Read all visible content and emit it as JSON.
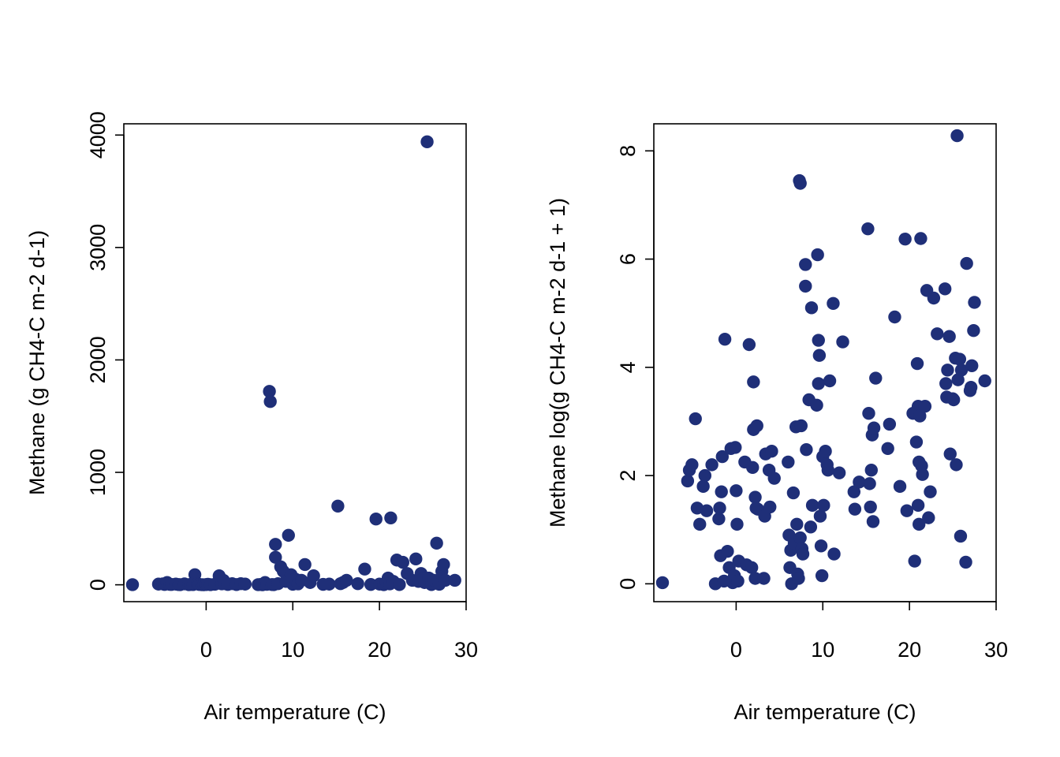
{
  "chart_data": [
    {
      "type": "scatter",
      "title": "",
      "xlabel": "Air temperature (C)",
      "ylabel": "Methane (g CH4-C m-2 d-1)",
      "xlim": [
        -9.5,
        30
      ],
      "ylim": [
        -150,
        4100
      ],
      "xticks": [
        0,
        10,
        20,
        30
      ],
      "xtick_labels": [
        "0",
        "10",
        "20",
        "30"
      ],
      "yticks": [
        0,
        1000,
        2000,
        3000,
        4000
      ],
      "ytick_labels": [
        "0",
        "1000",
        "2000",
        "3000",
        "4000"
      ],
      "color": "#1f2f78",
      "points": [
        {
          "x": -8.5,
          "y": 1
        },
        {
          "x": -5.5,
          "y": 6
        },
        {
          "x": -5.0,
          "y": 8
        },
        {
          "x": -4.8,
          "y": 3
        },
        {
          "x": -4.5,
          "y": 20
        },
        {
          "x": -4.2,
          "y": 4
        },
        {
          "x": -4.0,
          "y": 3
        },
        {
          "x": -3.5,
          "y": 6
        },
        {
          "x": -3.2,
          "y": 2
        },
        {
          "x": -3.0,
          "y": 1
        },
        {
          "x": -2.5,
          "y": 8
        },
        {
          "x": -2.0,
          "y": 1
        },
        {
          "x": -1.8,
          "y": 3
        },
        {
          "x": -1.5,
          "y": 2
        },
        {
          "x": -1.3,
          "y": 90
        },
        {
          "x": -1.0,
          "y": 10
        },
        {
          "x": -0.8,
          "y": 3
        },
        {
          "x": -0.5,
          "y": 1
        },
        {
          "x": -0.3,
          "y": 0
        },
        {
          "x": 0.0,
          "y": 2
        },
        {
          "x": 0.2,
          "y": 5
        },
        {
          "x": 0.5,
          "y": 1
        },
        {
          "x": 1.0,
          "y": 5
        },
        {
          "x": 1.5,
          "y": 80
        },
        {
          "x": 1.8,
          "y": 8
        },
        {
          "x": 2.0,
          "y": 40
        },
        {
          "x": 2.2,
          "y": 10
        },
        {
          "x": 2.5,
          "y": 3
        },
        {
          "x": 3.0,
          "y": 10
        },
        {
          "x": 3.5,
          "y": 2
        },
        {
          "x": 4.0,
          "y": 10
        },
        {
          "x": 4.5,
          "y": 6
        },
        {
          "x": 6.0,
          "y": 1
        },
        {
          "x": 6.3,
          "y": 3
        },
        {
          "x": 6.5,
          "y": 0
        },
        {
          "x": 6.8,
          "y": 20
        },
        {
          "x": 7.0,
          "y": 4
        },
        {
          "x": 7.3,
          "y": 1720
        },
        {
          "x": 7.4,
          "y": 1630
        },
        {
          "x": 7.6,
          "y": 2
        },
        {
          "x": 7.8,
          "y": 1
        },
        {
          "x": 8.0,
          "y": 360
        },
        {
          "x": 8.0,
          "y": 245
        },
        {
          "x": 8.3,
          "y": 10
        },
        {
          "x": 8.6,
          "y": 160
        },
        {
          "x": 8.9,
          "y": 120
        },
        {
          "x": 9.2,
          "y": 30
        },
        {
          "x": 9.5,
          "y": 440
        },
        {
          "x": 9.8,
          "y": 90
        },
        {
          "x": 10.0,
          "y": 5
        },
        {
          "x": 10.3,
          "y": 50
        },
        {
          "x": 10.6,
          "y": 8
        },
        {
          "x": 11.0,
          "y": 40
        },
        {
          "x": 11.4,
          "y": 180
        },
        {
          "x": 12.0,
          "y": 20
        },
        {
          "x": 12.4,
          "y": 80
        },
        {
          "x": 13.5,
          "y": 4
        },
        {
          "x": 14.2,
          "y": 6
        },
        {
          "x": 15.2,
          "y": 700
        },
        {
          "x": 15.5,
          "y": 10
        },
        {
          "x": 15.8,
          "y": 20
        },
        {
          "x": 16.2,
          "y": 40
        },
        {
          "x": 17.5,
          "y": 10
        },
        {
          "x": 18.3,
          "y": 140
        },
        {
          "x": 19.0,
          "y": 3
        },
        {
          "x": 19.6,
          "y": 585
        },
        {
          "x": 20.0,
          "y": 6
        },
        {
          "x": 20.5,
          "y": 1
        },
        {
          "x": 20.8,
          "y": 20
        },
        {
          "x": 21.0,
          "y": 60
        },
        {
          "x": 21.2,
          "y": 8
        },
        {
          "x": 21.3,
          "y": 595
        },
        {
          "x": 21.6,
          "y": 30
        },
        {
          "x": 22.0,
          "y": 220
        },
        {
          "x": 22.3,
          "y": 2
        },
        {
          "x": 22.7,
          "y": 200
        },
        {
          "x": 23.2,
          "y": 100
        },
        {
          "x": 23.8,
          "y": 40
        },
        {
          "x": 24.2,
          "y": 230
        },
        {
          "x": 24.5,
          "y": 30
        },
        {
          "x": 24.8,
          "y": 100
        },
        {
          "x": 25.0,
          "y": 50
        },
        {
          "x": 25.2,
          "y": 20
        },
        {
          "x": 25.5,
          "y": 3940
        },
        {
          "x": 25.7,
          "y": 60
        },
        {
          "x": 26.0,
          "y": 2
        },
        {
          "x": 26.3,
          "y": 40
        },
        {
          "x": 26.6,
          "y": 370
        },
        {
          "x": 26.9,
          "y": 5
        },
        {
          "x": 27.2,
          "y": 120
        },
        {
          "x": 27.4,
          "y": 180
        },
        {
          "x": 27.6,
          "y": 40
        },
        {
          "x": 28.7,
          "y": 40
        }
      ]
    },
    {
      "type": "scatter",
      "title": "",
      "xlabel": "Air temperature (C)",
      "ylabel": "Methane log(g CH4-C m-2 d-1 + 1)",
      "xlim": [
        -9.5,
        30
      ],
      "ylim": [
        -0.33,
        8.5
      ],
      "xticks": [
        0,
        10,
        20,
        30
      ],
      "xtick_labels": [
        "0",
        "10",
        "20",
        "30"
      ],
      "yticks": [
        0,
        2,
        4,
        6,
        8
      ],
      "ytick_labels": [
        "0",
        "2",
        "4",
        "6",
        "8"
      ],
      "color": "#1f2f78",
      "points": [
        {
          "x": -8.5,
          "y": 0.02
        },
        {
          "x": -5.6,
          "y": 1.9
        },
        {
          "x": -5.4,
          "y": 2.1
        },
        {
          "x": -5.1,
          "y": 2.2
        },
        {
          "x": -4.7,
          "y": 3.05
        },
        {
          "x": -4.5,
          "y": 1.4
        },
        {
          "x": -4.2,
          "y": 1.1
        },
        {
          "x": -3.8,
          "y": 1.8
        },
        {
          "x": -3.6,
          "y": 2.0
        },
        {
          "x": -3.4,
          "y": 1.35
        },
        {
          "x": -2.8,
          "y": 2.2
        },
        {
          "x": -2.4,
          "y": 0.0
        },
        {
          "x": -2.0,
          "y": 1.2
        },
        {
          "x": -1.9,
          "y": 1.4
        },
        {
          "x": -1.8,
          "y": 0.52
        },
        {
          "x": -1.7,
          "y": 1.7
        },
        {
          "x": -1.6,
          "y": 2.35
        },
        {
          "x": -1.4,
          "y": 0.05
        },
        {
          "x": -1.3,
          "y": 4.52
        },
        {
          "x": -1.0,
          "y": 0.6
        },
        {
          "x": -0.8,
          "y": 0.3
        },
        {
          "x": -0.6,
          "y": 2.5
        },
        {
          "x": -0.4,
          "y": 0.02
        },
        {
          "x": -0.2,
          "y": 0.15
        },
        {
          "x": -0.1,
          "y": 2.52
        },
        {
          "x": 0.0,
          "y": 1.72
        },
        {
          "x": 0.1,
          "y": 1.1
        },
        {
          "x": 0.2,
          "y": 0.05
        },
        {
          "x": 0.3,
          "y": 0.42
        },
        {
          "x": 1.0,
          "y": 2.25
        },
        {
          "x": 1.2,
          "y": 0.35
        },
        {
          "x": 1.5,
          "y": 4.42
        },
        {
          "x": 1.8,
          "y": 0.3
        },
        {
          "x": 1.9,
          "y": 2.15
        },
        {
          "x": 2.0,
          "y": 3.73
        },
        {
          "x": 2.0,
          "y": 2.85
        },
        {
          "x": 2.2,
          "y": 1.6
        },
        {
          "x": 2.2,
          "y": 0.1
        },
        {
          "x": 2.3,
          "y": 1.4
        },
        {
          "x": 2.4,
          "y": 2.92
        },
        {
          "x": 2.5,
          "y": 1.38
        },
        {
          "x": 3.2,
          "y": 0.1
        },
        {
          "x": 3.3,
          "y": 1.25
        },
        {
          "x": 3.4,
          "y": 2.4
        },
        {
          "x": 3.8,
          "y": 2.1
        },
        {
          "x": 3.9,
          "y": 1.42
        },
        {
          "x": 4.1,
          "y": 2.45
        },
        {
          "x": 4.4,
          "y": 1.95
        },
        {
          "x": 6.0,
          "y": 2.25
        },
        {
          "x": 6.1,
          "y": 0.9
        },
        {
          "x": 6.2,
          "y": 0.3
        },
        {
          "x": 6.3,
          "y": 0.62
        },
        {
          "x": 6.4,
          "y": 0.0
        },
        {
          "x": 6.6,
          "y": 1.68
        },
        {
          "x": 6.7,
          "y": 0.75
        },
        {
          "x": 6.9,
          "y": 2.9
        },
        {
          "x": 7.0,
          "y": 1.1
        },
        {
          "x": 7.1,
          "y": 0.18
        },
        {
          "x": 7.2,
          "y": 0.1
        },
        {
          "x": 7.3,
          "y": 7.45
        },
        {
          "x": 7.4,
          "y": 7.4
        },
        {
          "x": 7.4,
          "y": 0.85
        },
        {
          "x": 7.5,
          "y": 2.92
        },
        {
          "x": 7.6,
          "y": 0.65
        },
        {
          "x": 7.7,
          "y": 0.55
        },
        {
          "x": 8.0,
          "y": 5.9
        },
        {
          "x": 8.0,
          "y": 5.5
        },
        {
          "x": 8.1,
          "y": 2.48
        },
        {
          "x": 8.4,
          "y": 3.4
        },
        {
          "x": 8.6,
          "y": 1.05
        },
        {
          "x": 8.7,
          "y": 5.1
        },
        {
          "x": 8.8,
          "y": 1.45
        },
        {
          "x": 9.3,
          "y": 3.3
        },
        {
          "x": 9.4,
          "y": 6.08
        },
        {
          "x": 9.5,
          "y": 4.5
        },
        {
          "x": 9.5,
          "y": 3.7
        },
        {
          "x": 9.6,
          "y": 4.22
        },
        {
          "x": 9.7,
          "y": 1.25
        },
        {
          "x": 9.8,
          "y": 0.7
        },
        {
          "x": 9.9,
          "y": 0.15
        },
        {
          "x": 10.0,
          "y": 2.35
        },
        {
          "x": 10.1,
          "y": 1.45
        },
        {
          "x": 10.3,
          "y": 2.45
        },
        {
          "x": 10.5,
          "y": 2.2
        },
        {
          "x": 10.6,
          "y": 2.1
        },
        {
          "x": 10.8,
          "y": 3.75
        },
        {
          "x": 11.2,
          "y": 5.18
        },
        {
          "x": 11.3,
          "y": 0.55
        },
        {
          "x": 11.9,
          "y": 2.05
        },
        {
          "x": 12.3,
          "y": 4.47
        },
        {
          "x": 13.6,
          "y": 1.7
        },
        {
          "x": 13.7,
          "y": 1.38
        },
        {
          "x": 14.2,
          "y": 1.88
        },
        {
          "x": 15.2,
          "y": 6.56
        },
        {
          "x": 15.3,
          "y": 3.15
        },
        {
          "x": 15.4,
          "y": 1.85
        },
        {
          "x": 15.5,
          "y": 1.42
        },
        {
          "x": 15.6,
          "y": 2.1
        },
        {
          "x": 15.7,
          "y": 2.75
        },
        {
          "x": 15.8,
          "y": 1.15
        },
        {
          "x": 15.9,
          "y": 2.88
        },
        {
          "x": 16.1,
          "y": 3.8
        },
        {
          "x": 17.5,
          "y": 2.5
        },
        {
          "x": 17.7,
          "y": 2.95
        },
        {
          "x": 18.3,
          "y": 4.93
        },
        {
          "x": 18.9,
          "y": 1.8
        },
        {
          "x": 19.5,
          "y": 6.37
        },
        {
          "x": 19.7,
          "y": 1.35
        },
        {
          "x": 20.4,
          "y": 3.15
        },
        {
          "x": 20.6,
          "y": 0.42
        },
        {
          "x": 20.8,
          "y": 2.62
        },
        {
          "x": 20.9,
          "y": 4.07
        },
        {
          "x": 21.0,
          "y": 1.45
        },
        {
          "x": 21.0,
          "y": 3.28
        },
        {
          "x": 21.1,
          "y": 2.25
        },
        {
          "x": 21.1,
          "y": 1.1
        },
        {
          "x": 21.2,
          "y": 3.1
        },
        {
          "x": 21.3,
          "y": 6.38
        },
        {
          "x": 21.4,
          "y": 2.18
        },
        {
          "x": 21.5,
          "y": 2.02
        },
        {
          "x": 21.8,
          "y": 3.28
        },
        {
          "x": 22.0,
          "y": 5.42
        },
        {
          "x": 22.2,
          "y": 1.22
        },
        {
          "x": 22.4,
          "y": 1.7
        },
        {
          "x": 22.8,
          "y": 5.28
        },
        {
          "x": 23.2,
          "y": 4.62
        },
        {
          "x": 24.1,
          "y": 5.45
        },
        {
          "x": 24.2,
          "y": 3.7
        },
        {
          "x": 24.3,
          "y": 3.45
        },
        {
          "x": 24.4,
          "y": 3.95
        },
        {
          "x": 24.6,
          "y": 4.57
        },
        {
          "x": 24.7,
          "y": 2.4
        },
        {
          "x": 25.0,
          "y": 3.42
        },
        {
          "x": 25.1,
          "y": 3.4
        },
        {
          "x": 25.3,
          "y": 4.17
        },
        {
          "x": 25.4,
          "y": 2.2
        },
        {
          "x": 25.5,
          "y": 8.28
        },
        {
          "x": 25.6,
          "y": 3.77
        },
        {
          "x": 25.8,
          "y": 4.15
        },
        {
          "x": 25.9,
          "y": 0.88
        },
        {
          "x": 26.0,
          "y": 3.95
        },
        {
          "x": 26.5,
          "y": 0.4
        },
        {
          "x": 26.6,
          "y": 5.92
        },
        {
          "x": 27.0,
          "y": 3.57
        },
        {
          "x": 27.1,
          "y": 3.63
        },
        {
          "x": 27.2,
          "y": 4.03
        },
        {
          "x": 27.4,
          "y": 4.68
        },
        {
          "x": 27.5,
          "y": 5.2
        },
        {
          "x": 28.7,
          "y": 3.75
        }
      ]
    }
  ]
}
